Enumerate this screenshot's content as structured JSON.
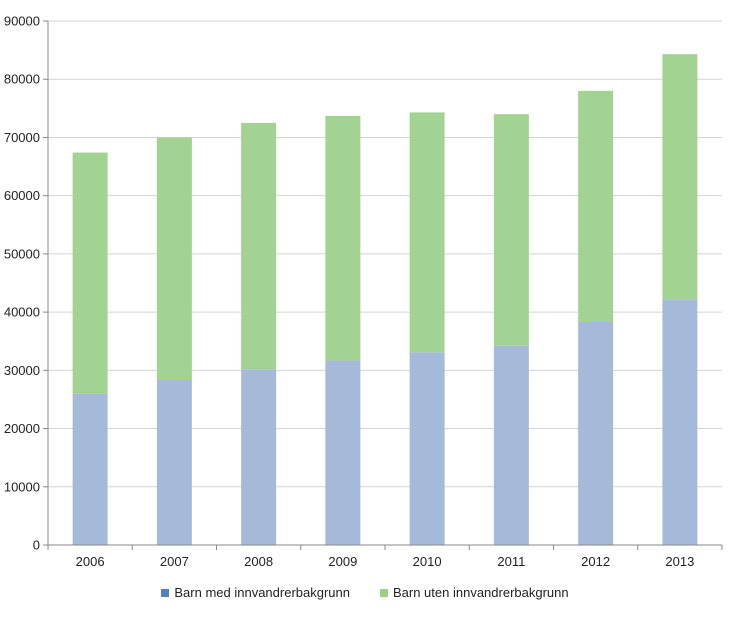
{
  "chart_data": {
    "type": "bar",
    "stacked": true,
    "title": "",
    "xlabel": "",
    "ylabel": "",
    "categories": [
      "2006",
      "2007",
      "2008",
      "2009",
      "2010",
      "2011",
      "2012",
      "2013"
    ],
    "ylim": [
      0,
      90000
    ],
    "yticks": [
      0,
      10000,
      20000,
      30000,
      40000,
      50000,
      60000,
      70000,
      80000,
      90000
    ],
    "grid": true,
    "legend_position": "bottom",
    "series": [
      {
        "name": "Barn med innvandrerbakgrunn",
        "color": "#a5bad9",
        "legend_color": "#4f81bd",
        "values": [
          26000,
          28500,
          30200,
          31700,
          33100,
          34200,
          38300,
          42200
        ]
      },
      {
        "name": "Barn uten innvandrerbakgrunn",
        "color": "#a3d393",
        "legend_color": "#9bd27f",
        "values": [
          41400,
          41500,
          42300,
          42000,
          41200,
          39800,
          39700,
          42100
        ]
      }
    ]
  }
}
